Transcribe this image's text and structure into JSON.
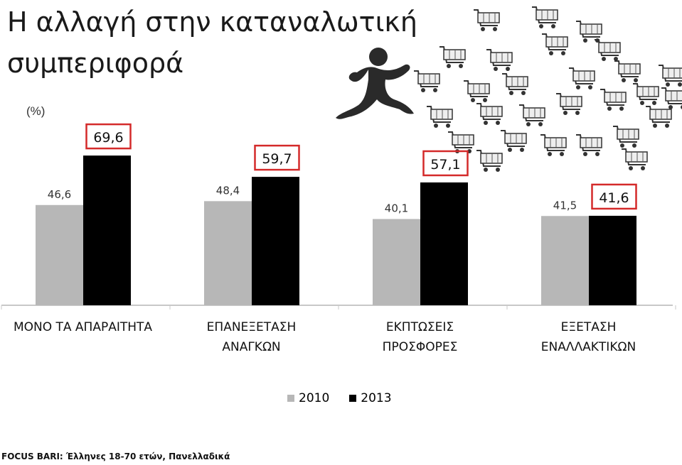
{
  "page": {
    "title": "Η αλλαγή στην καταναλωτική συμπεριφορά",
    "unit": "(%)",
    "source": "FOCUS BARI: Έλληνες 18-70 ετών, Πανελλαδικά"
  },
  "colors": {
    "series_2010": "#b7b7b7",
    "series_2013": "#000000",
    "highlight_box": "#d42a2a",
    "axis": "#c8c8c8"
  },
  "decoration": {
    "icons": [
      "running-man-icon",
      "shopping-cart-icon"
    ]
  },
  "chart_data": {
    "type": "bar",
    "categories": [
      [
        "ΜΟΝΟ ΤΑ ΑΠΑΡΑΙΤΗΤΑ"
      ],
      [
        "ΕΠΑΝΕΞΕΤΑΣΗ",
        "ΑΝΑΓΚΩΝ"
      ],
      [
        "ΕΚΠΤΩΣΕΙΣ",
        "ΠΡΟΣΦΟΡΕΣ"
      ],
      [
        "ΕΞΕΤΑΣΗ",
        "ΕΝΑΛΛΑΚΤΙΚΩΝ"
      ]
    ],
    "series": [
      {
        "name": "2010",
        "values": [
          46.6,
          48.4,
          40.1,
          41.5
        ],
        "labels": [
          "46,6",
          "48,4",
          "40,1",
          "41,5"
        ]
      },
      {
        "name": "2013",
        "values": [
          69.6,
          59.7,
          57.1,
          41.6
        ],
        "labels": [
          "69,6",
          "59,7",
          "57,1",
          "41,6"
        ]
      }
    ],
    "ylim": [
      0,
      70
    ],
    "grid": false,
    "legend": "bottom-center"
  }
}
